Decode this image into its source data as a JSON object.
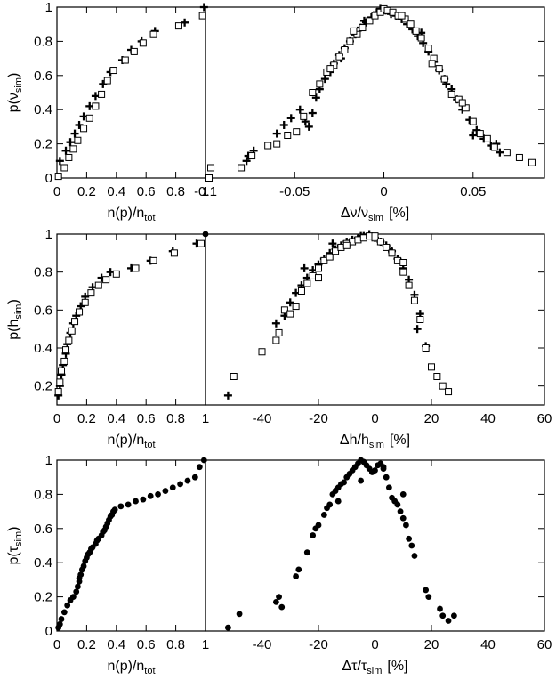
{
  "chart_data": [
    {
      "id": "row1-left",
      "type": "scatter",
      "xlabel_main": "n(p)/n",
      "xlabel_sub": "tot",
      "ylabel_main": "p(ν",
      "ylabel_sub": "sim",
      "ylabel_close": ")",
      "xlim": [
        0,
        1
      ],
      "ylim": [
        0,
        1
      ],
      "xticks": [
        0,
        0.2,
        0.4,
        0.6,
        0.8,
        1
      ],
      "xtick_labels": [
        "0",
        "0.2",
        "0.4",
        "0.6",
        "0.8",
        "1"
      ],
      "yticks": [
        0,
        0.2,
        0.4,
        0.6,
        0.8,
        1
      ],
      "ytick_labels": [
        "0",
        "0.2",
        "0.4",
        "0.6",
        "0.8",
        "1"
      ],
      "series": [
        {
          "name": "plus",
          "marker": "plus",
          "x": [
            0.02,
            0.06,
            0.09,
            0.12,
            0.15,
            0.18,
            0.22,
            0.26,
            0.31,
            0.36,
            0.44,
            0.5,
            0.57,
            0.66,
            0.86,
            0.99
          ],
          "y": [
            0.1,
            0.16,
            0.21,
            0.26,
            0.31,
            0.36,
            0.42,
            0.48,
            0.55,
            0.62,
            0.69,
            0.75,
            0.8,
            0.86,
            0.91,
            1.0
          ]
        },
        {
          "name": "square",
          "marker": "square",
          "x": [
            0.01,
            0.05,
            0.08,
            0.11,
            0.14,
            0.18,
            0.22,
            0.26,
            0.3,
            0.34,
            0.38,
            0.46,
            0.52,
            0.58,
            0.65,
            0.82,
            0.98
          ],
          "y": [
            0.01,
            0.06,
            0.12,
            0.17,
            0.22,
            0.29,
            0.35,
            0.42,
            0.49,
            0.57,
            0.63,
            0.69,
            0.74,
            0.79,
            0.84,
            0.89,
            0.95
          ]
        }
      ]
    },
    {
      "id": "row1-right",
      "type": "scatter",
      "xlabel_main": "Δν/ν",
      "xlabel_sub": "sim",
      "xlabel_unit": "[%]",
      "xlim": [
        -0.1,
        0.09
      ],
      "ylim": [
        0,
        1
      ],
      "xticks": [
        -0.1,
        -0.05,
        0,
        0.05
      ],
      "xtick_labels": [
        "-0.1",
        "-0.05",
        "0",
        "0.05"
      ],
      "series": [
        {
          "name": "plus",
          "marker": "plus",
          "x": [
            -0.077,
            -0.076,
            -0.073,
            -0.06,
            -0.056,
            -0.052,
            -0.047,
            -0.044,
            -0.04,
            -0.038,
            -0.036,
            -0.033,
            -0.03,
            -0.028,
            -0.025,
            -0.022,
            -0.019,
            -0.016,
            -0.013,
            -0.01,
            -0.007,
            -0.004,
            -0.002,
            0.001,
            0.004,
            0.007,
            0.01,
            0.013,
            0.016,
            0.019,
            0.022,
            0.025,
            0.028,
            0.031,
            0.034,
            0.038,
            0.041,
            0.044,
            0.048,
            0.052,
            0.056,
            0.06,
            0.065,
            -0.042,
            -0.024,
            -0.011,
            0.021,
            0.035,
            0.05,
            0.063
          ],
          "y": [
            0.1,
            0.13,
            0.16,
            0.26,
            0.31,
            0.35,
            0.4,
            0.33,
            0.38,
            0.47,
            0.52,
            0.58,
            0.62,
            0.67,
            0.72,
            0.76,
            0.8,
            0.84,
            0.88,
            0.91,
            0.94,
            0.97,
            0.99,
            0.98,
            0.96,
            0.95,
            0.93,
            0.9,
            0.87,
            0.83,
            0.79,
            0.74,
            0.68,
            0.63,
            0.58,
            0.52,
            0.46,
            0.4,
            0.34,
            0.28,
            0.23,
            0.19,
            0.15,
            0.3,
            0.7,
            0.92,
            0.85,
            0.55,
            0.25,
            0.2
          ]
        },
        {
          "name": "square",
          "marker": "square",
          "x": [
            -0.098,
            -0.097,
            -0.08,
            -0.074,
            -0.065,
            -0.06,
            -0.054,
            -0.049,
            -0.045,
            -0.04,
            -0.036,
            -0.032,
            -0.028,
            -0.025,
            -0.022,
            -0.019,
            -0.015,
            -0.012,
            -0.008,
            -0.005,
            -0.002,
            0.0,
            0.002,
            0.005,
            0.008,
            0.012,
            0.015,
            0.018,
            0.021,
            0.025,
            0.028,
            0.031,
            0.034,
            0.038,
            0.042,
            0.046,
            0.05,
            0.054,
            0.058,
            0.062,
            0.069,
            0.076,
            0.083,
            -0.03,
            -0.017,
            0.01,
            0.027,
            0.044
          ],
          "y": [
            0.0,
            0.06,
            0.06,
            0.13,
            0.19,
            0.2,
            0.25,
            0.27,
            0.36,
            0.5,
            0.55,
            0.62,
            0.66,
            0.71,
            0.75,
            0.8,
            0.84,
            0.88,
            0.92,
            0.95,
            0.97,
            0.99,
            0.98,
            0.97,
            0.95,
            0.93,
            0.9,
            0.86,
            0.82,
            0.76,
            0.7,
            0.64,
            0.58,
            0.49,
            0.46,
            0.41,
            0.33,
            0.26,
            0.23,
            0.18,
            0.15,
            0.12,
            0.09,
            0.64,
            0.86,
            0.95,
            0.67,
            0.44
          ]
        }
      ]
    },
    {
      "id": "row2-left",
      "type": "scatter",
      "xlabel_main": "n(p)/n",
      "xlabel_sub": "tot",
      "ylabel_main": "p(h",
      "ylabel_sub": "sim",
      "ylabel_close": ")",
      "xlim": [
        0,
        1
      ],
      "ylim": [
        0.1,
        1
      ],
      "xticks": [
        0,
        0.2,
        0.4,
        0.6,
        0.8,
        1
      ],
      "xtick_labels": [
        "0",
        "0.2",
        "0.4",
        "0.6",
        "0.8",
        "1"
      ],
      "yticks": [
        0.2,
        0.4,
        0.6,
        0.8,
        1
      ],
      "ytick_labels": [
        "0.2",
        "0.4",
        "0.6",
        "0.8",
        "1"
      ],
      "series": [
        {
          "name": "plus",
          "marker": "plus",
          "x": [
            0.01,
            0.02,
            0.03,
            0.04,
            0.06,
            0.07,
            0.09,
            0.11,
            0.13,
            0.16,
            0.19,
            0.24,
            0.3,
            0.36,
            0.5,
            0.63,
            0.78,
            0.94
          ],
          "y": [
            0.15,
            0.2,
            0.26,
            0.31,
            0.37,
            0.42,
            0.48,
            0.53,
            0.57,
            0.62,
            0.67,
            0.72,
            0.77,
            0.8,
            0.82,
            0.86,
            0.91,
            0.95
          ]
        },
        {
          "name": "square",
          "marker": "square",
          "x": [
            0.01,
            0.02,
            0.03,
            0.05,
            0.06,
            0.08,
            0.1,
            0.12,
            0.15,
            0.19,
            0.23,
            0.28,
            0.33,
            0.4,
            0.53,
            0.65,
            0.79,
            0.97
          ],
          "y": [
            0.17,
            0.22,
            0.28,
            0.33,
            0.39,
            0.44,
            0.49,
            0.54,
            0.59,
            0.64,
            0.69,
            0.73,
            0.76,
            0.79,
            0.82,
            0.86,
            0.9,
            0.95
          ]
        },
        {
          "name": "filled-circle",
          "marker": "circle",
          "x": [
            1.0
          ],
          "y": [
            1.0
          ]
        }
      ]
    },
    {
      "id": "row2-right",
      "type": "scatter",
      "xlabel_main": "Δh/h",
      "xlabel_sub": "sim",
      "xlabel_unit": "[%]",
      "xlim": [
        -60,
        60
      ],
      "ylim": [
        0.1,
        1
      ],
      "xticks": [
        -40,
        -20,
        0,
        20,
        40,
        60
      ],
      "xtick_labels": [
        "-40",
        "-20",
        "0",
        "20",
        "40",
        "60"
      ],
      "series": [
        {
          "name": "plus",
          "marker": "plus",
          "x": [
            -52,
            -35,
            -32,
            -30,
            -28,
            -26,
            -24,
            -22,
            -20,
            -18,
            -16,
            -14,
            -12,
            -10,
            -8,
            -6,
            -4,
            -2,
            0,
            2,
            4,
            6,
            8,
            10,
            12,
            14,
            16,
            18,
            -25,
            -15,
            -5,
            5,
            15
          ],
          "y": [
            0.15,
            0.53,
            0.57,
            0.64,
            0.69,
            0.73,
            0.77,
            0.81,
            0.84,
            0.87,
            0.9,
            0.92,
            0.94,
            0.96,
            0.97,
            0.98,
            0.99,
            1.0,
            0.98,
            0.96,
            0.94,
            0.91,
            0.87,
            0.82,
            0.76,
            0.68,
            0.58,
            0.41,
            0.82,
            0.95,
            0.99,
            0.92,
            0.5
          ]
        },
        {
          "name": "square",
          "marker": "square",
          "x": [
            -50,
            -40,
            -35,
            -34,
            -32,
            -30,
            -28,
            -26,
            -24,
            -22,
            -20,
            -18,
            -16,
            -14,
            -12,
            -10,
            -8,
            -6,
            -4,
            -2,
            0,
            2,
            4,
            6,
            8,
            10,
            12,
            14,
            16,
            18,
            20,
            22,
            24,
            26,
            -20,
            -10,
            0,
            10
          ],
          "y": [
            0.25,
            0.38,
            0.44,
            0.48,
            0.6,
            0.58,
            0.62,
            0.7,
            0.74,
            0.78,
            0.82,
            0.86,
            0.88,
            0.91,
            0.93,
            0.95,
            0.96,
            0.97,
            0.98,
            0.99,
            0.98,
            0.96,
            0.93,
            0.9,
            0.86,
            0.8,
            0.73,
            0.65,
            0.55,
            0.4,
            0.3,
            0.25,
            0.2,
            0.17,
            0.77,
            0.94,
            0.99,
            0.85
          ]
        }
      ]
    },
    {
      "id": "row3-left",
      "type": "scatter",
      "xlabel_main": "n(p)/n",
      "xlabel_sub": "tot",
      "ylabel_main": "p(τ",
      "ylabel_sub": "sim",
      "ylabel_close": ")",
      "xlim": [
        0,
        1
      ],
      "ylim": [
        0,
        1
      ],
      "xticks": [
        0,
        0.2,
        0.4,
        0.6,
        0.8,
        1
      ],
      "xtick_labels": [
        "0",
        "0.2",
        "0.4",
        "0.6",
        "0.8",
        "1"
      ],
      "yticks": [
        0,
        0.2,
        0.4,
        0.6,
        0.8,
        1
      ],
      "ytick_labels": [
        "0",
        "0.2",
        "0.4",
        "0.6",
        "0.8",
        "1"
      ],
      "series": [
        {
          "name": "filled-circle",
          "marker": "circle",
          "x": [
            0.01,
            0.02,
            0.03,
            0.05,
            0.07,
            0.09,
            0.11,
            0.13,
            0.14,
            0.15,
            0.15,
            0.16,
            0.17,
            0.18,
            0.19,
            0.2,
            0.21,
            0.22,
            0.23,
            0.24,
            0.26,
            0.27,
            0.28,
            0.3,
            0.31,
            0.32,
            0.33,
            0.34,
            0.35,
            0.36,
            0.37,
            0.38,
            0.39,
            0.43,
            0.48,
            0.53,
            0.58,
            0.63,
            0.68,
            0.73,
            0.78,
            0.83,
            0.88,
            0.93,
            0.96,
            0.99
          ],
          "y": [
            0.02,
            0.04,
            0.07,
            0.11,
            0.15,
            0.18,
            0.2,
            0.23,
            0.26,
            0.29,
            0.31,
            0.33,
            0.36,
            0.38,
            0.41,
            0.43,
            0.45,
            0.46,
            0.48,
            0.49,
            0.51,
            0.53,
            0.54,
            0.56,
            0.58,
            0.59,
            0.61,
            0.63,
            0.65,
            0.67,
            0.68,
            0.7,
            0.71,
            0.73,
            0.74,
            0.76,
            0.77,
            0.79,
            0.8,
            0.82,
            0.84,
            0.86,
            0.88,
            0.9,
            0.96,
            1.0
          ]
        }
      ]
    },
    {
      "id": "row3-right",
      "type": "scatter",
      "xlabel_main": "Δτ/τ",
      "xlabel_sub": "sim",
      "xlabel_unit": "[%]",
      "xlim": [
        -60,
        60
      ],
      "ylim": [
        0,
        1
      ],
      "xticks": [
        -40,
        -20,
        0,
        20,
        40,
        60
      ],
      "xtick_labels": [
        "-40",
        "-20",
        "0",
        "20",
        "40",
        "60"
      ],
      "series": [
        {
          "name": "filled-circle",
          "marker": "circle",
          "x": [
            -52,
            -48,
            -35,
            -34,
            -33,
            -28,
            -27,
            -24,
            -22,
            -21,
            -20,
            -18,
            -17,
            -16,
            -15,
            -14,
            -13,
            -12,
            -11,
            -10,
            -9,
            -8,
            -7,
            -6,
            -5,
            -4,
            -3,
            -2,
            -1,
            0,
            1,
            2,
            3,
            4,
            5,
            6,
            7,
            8,
            9,
            10,
            11,
            12,
            13,
            14,
            18,
            19,
            23,
            24,
            26,
            28,
            -13,
            -5,
            3,
            10
          ],
          "y": [
            0.02,
            0.1,
            0.17,
            0.2,
            0.14,
            0.32,
            0.36,
            0.46,
            0.56,
            0.6,
            0.62,
            0.68,
            0.72,
            0.74,
            0.8,
            0.82,
            0.84,
            0.86,
            0.87,
            0.9,
            0.92,
            0.94,
            0.96,
            0.98,
            1.0,
            0.99,
            0.97,
            0.95,
            0.93,
            0.94,
            0.97,
            0.98,
            0.95,
            0.9,
            0.84,
            0.78,
            0.76,
            0.74,
            0.7,
            0.66,
            0.62,
            0.54,
            0.5,
            0.44,
            0.24,
            0.2,
            0.13,
            0.09,
            0.06,
            0.09,
            0.76,
            0.88,
            0.96,
            0.8
          ]
        }
      ]
    }
  ]
}
